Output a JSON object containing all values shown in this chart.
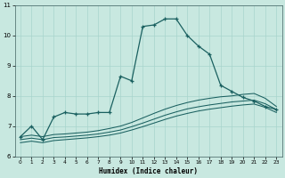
{
  "xlabel": "Humidex (Indice chaleur)",
  "background_color": "#c8e8e0",
  "grid_color": "#a8d4cc",
  "line_color": "#1a6060",
  "x_main": [
    0,
    1,
    2,
    3,
    4,
    5,
    6,
    7,
    8,
    9,
    10,
    11,
    12,
    13,
    14,
    15,
    16,
    17,
    18,
    19,
    20,
    21,
    22,
    23
  ],
  "y_main": [
    6.65,
    7.0,
    6.55,
    7.3,
    7.45,
    7.4,
    7.4,
    7.45,
    7.45,
    8.65,
    8.5,
    10.3,
    10.35,
    10.55,
    10.55,
    10.0,
    9.65,
    9.38,
    8.35,
    8.15,
    7.95,
    7.83,
    7.65,
    7.55
  ],
  "x_line2": [
    0,
    1,
    2,
    3,
    4,
    5,
    6,
    7,
    8,
    9,
    10,
    11,
    12,
    13,
    14,
    15,
    16,
    17,
    18,
    19,
    20,
    21,
    22,
    23
  ],
  "y_line2": [
    6.65,
    6.7,
    6.65,
    6.72,
    6.74,
    6.77,
    6.8,
    6.85,
    6.92,
    7.0,
    7.12,
    7.27,
    7.42,
    7.56,
    7.68,
    7.78,
    7.86,
    7.92,
    7.97,
    8.0,
    8.05,
    8.08,
    7.92,
    7.65
  ],
  "x_line3": [
    0,
    1,
    2,
    3,
    4,
    5,
    6,
    7,
    8,
    9,
    10,
    11,
    12,
    13,
    14,
    15,
    16,
    17,
    18,
    19,
    20,
    21,
    22,
    23
  ],
  "y_line3": [
    6.55,
    6.6,
    6.55,
    6.62,
    6.64,
    6.67,
    6.7,
    6.74,
    6.8,
    6.87,
    6.98,
    7.1,
    7.23,
    7.36,
    7.47,
    7.57,
    7.64,
    7.7,
    7.75,
    7.8,
    7.83,
    7.86,
    7.74,
    7.55
  ],
  "x_line4": [
    0,
    1,
    2,
    3,
    4,
    5,
    6,
    7,
    8,
    9,
    10,
    11,
    12,
    13,
    14,
    15,
    16,
    17,
    18,
    19,
    20,
    21,
    22,
    23
  ],
  "y_line4": [
    6.45,
    6.5,
    6.45,
    6.52,
    6.55,
    6.58,
    6.61,
    6.65,
    6.7,
    6.77,
    6.87,
    6.98,
    7.1,
    7.22,
    7.33,
    7.42,
    7.5,
    7.56,
    7.61,
    7.66,
    7.7,
    7.73,
    7.62,
    7.45
  ],
  "ylim": [
    6.0,
    11.0
  ],
  "xlim": [
    -0.5,
    23.5
  ],
  "yticks": [
    6,
    7,
    8,
    9,
    10,
    11
  ],
  "xticks": [
    0,
    1,
    2,
    3,
    4,
    5,
    6,
    7,
    8,
    9,
    10,
    11,
    12,
    13,
    14,
    15,
    16,
    17,
    18,
    19,
    20,
    21,
    22,
    23
  ]
}
